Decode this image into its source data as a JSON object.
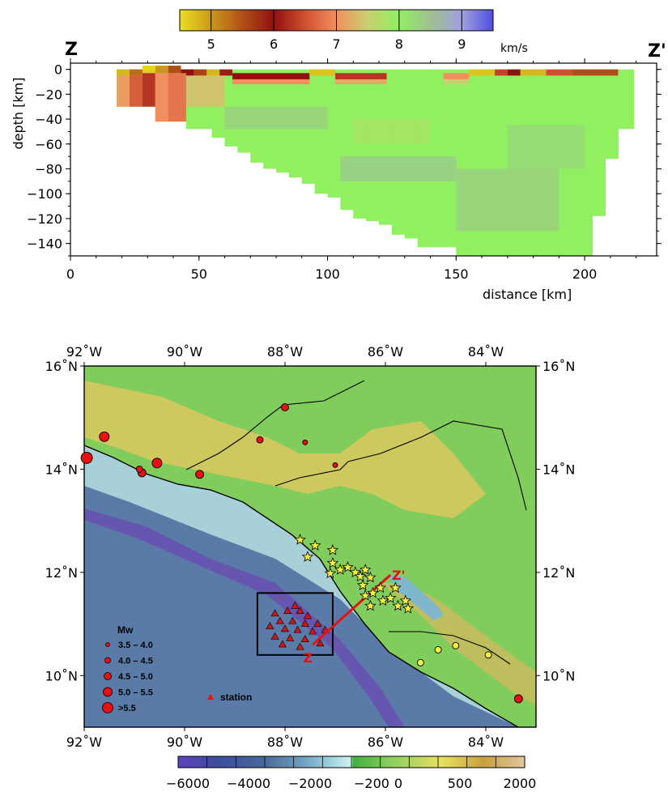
{
  "top_panel": {
    "left_label": "Z",
    "right_label": "Z'",
    "velocity_unit": "km/s",
    "velocity_colorbar": {
      "ticks": [
        "5",
        "6",
        "7",
        "8",
        "9"
      ],
      "range": [
        4.5,
        9.5
      ],
      "stops": [
        {
          "v": 4.5,
          "color": "#e8e020"
        },
        {
          "v": 5.5,
          "color": "#b05018"
        },
        {
          "v": 6.0,
          "color": "#901010"
        },
        {
          "v": 6.5,
          "color": "#d05030"
        },
        {
          "v": 7.0,
          "color": "#f09060"
        },
        {
          "v": 7.5,
          "color": "#c8d070"
        },
        {
          "v": 8.0,
          "color": "#90f060"
        },
        {
          "v": 8.5,
          "color": "#a0c090"
        },
        {
          "v": 9.0,
          "color": "#a0a0e0"
        },
        {
          "v": 9.5,
          "color": "#5050e0"
        }
      ]
    },
    "x_axis_label": "distance [km]",
    "y_axis_label": "depth [km]",
    "x_ticks": [
      "0",
      "50",
      "100",
      "150",
      "200"
    ],
    "y_ticks": [
      "0",
      "−20",
      "−40",
      "−60",
      "−80",
      "−100",
      "−120",
      "−140"
    ]
  },
  "map_panel": {
    "lon_ticks": [
      "92˚W",
      "90˚W",
      "88˚W",
      "86˚W",
      "84˚W"
    ],
    "lat_ticks": [
      "16˚N",
      "14˚N",
      "12˚N",
      "10˚N"
    ],
    "legend_title": "Mw",
    "legend_items": [
      "3.5 – 4.0",
      "4.0 – 4.5",
      "4.5 – 5.0",
      "5.0 – 5.5",
      ">5.5"
    ],
    "station_label": "station",
    "profile_start_label": "Z",
    "profile_end_label": "Z'",
    "elevation_ticks": [
      "−6000",
      "−4000",
      "−2000",
      "−200",
      "0",
      "500",
      "2000"
    ]
  },
  "chart_data": [
    {
      "type": "heatmap",
      "title": "",
      "xlabel": "distance [km]",
      "ylabel": "depth [km]",
      "xlim": [
        0,
        228
      ],
      "ylim": [
        -150,
        5
      ],
      "colorbar": {
        "label": "km/s",
        "range": [
          4.5,
          9.5
        ],
        "ticks": [
          5,
          6,
          7,
          8,
          9
        ]
      },
      "model_columns": [
        {
          "x0": 18,
          "x1": 23,
          "bottom": -30
        },
        {
          "x0": 23,
          "x1": 28,
          "bottom": -30
        },
        {
          "x0": 28,
          "x1": 33,
          "bottom": -30
        },
        {
          "x0": 33,
          "x1": 38,
          "bottom": -42
        },
        {
          "x0": 38,
          "x1": 45,
          "bottom": -42
        },
        {
          "x0": 45,
          "x1": 55,
          "bottom": -48
        },
        {
          "x0": 55,
          "x1": 60,
          "bottom": -55
        },
        {
          "x0": 60,
          "x1": 65,
          "bottom": -62
        },
        {
          "x0": 65,
          "x1": 70,
          "bottom": -67
        },
        {
          "x0": 70,
          "x1": 75,
          "bottom": -75
        },
        {
          "x0": 75,
          "x1": 80,
          "bottom": -80
        },
        {
          "x0": 80,
          "x1": 85,
          "bottom": -83
        },
        {
          "x0": 85,
          "x1": 90,
          "bottom": -87
        },
        {
          "x0": 90,
          "x1": 95,
          "bottom": -92
        },
        {
          "x0": 95,
          "x1": 100,
          "bottom": -100
        },
        {
          "x0": 100,
          "x1": 105,
          "bottom": -103
        },
        {
          "x0": 105,
          "x1": 110,
          "bottom": -113
        },
        {
          "x0": 110,
          "x1": 115,
          "bottom": -120
        },
        {
          "x0": 115,
          "x1": 120,
          "bottom": -122
        },
        {
          "x0": 120,
          "x1": 125,
          "bottom": -125
        },
        {
          "x0": 125,
          "x1": 130,
          "bottom": -133
        },
        {
          "x0": 130,
          "x1": 135,
          "bottom": -136
        },
        {
          "x0": 135,
          "x1": 140,
          "bottom": -143
        },
        {
          "x0": 140,
          "x1": 150,
          "bottom": -143
        },
        {
          "x0": 150,
          "x1": 165,
          "bottom": -150
        },
        {
          "x0": 165,
          "x1": 175,
          "bottom": -150
        },
        {
          "x0": 175,
          "x1": 185,
          "bottom": -150
        },
        {
          "x0": 185,
          "x1": 195,
          "bottom": -150
        },
        {
          "x0": 195,
          "x1": 203,
          "bottom": -150
        },
        {
          "x0": 203,
          "x1": 208,
          "bottom": -118
        },
        {
          "x0": 208,
          "x1": 213,
          "bottom": -72
        },
        {
          "x0": 213,
          "x1": 219,
          "bottom": -48
        }
      ],
      "velocity_cells": [
        {
          "x0": 18,
          "x1": 23,
          "z0": 0,
          "z1": -5,
          "v": 4.8
        },
        {
          "x0": 23,
          "x1": 28,
          "z0": 0,
          "z1": -5,
          "v": 5.3
        },
        {
          "x0": 28,
          "x1": 33,
          "z0": 3,
          "z1": -3,
          "v": 4.6
        },
        {
          "x0": 33,
          "x1": 38,
          "z0": 3,
          "z1": -3,
          "v": 5.0
        },
        {
          "x0": 38,
          "x1": 43,
          "z0": 3,
          "z1": -3,
          "v": 5.5
        },
        {
          "x0": 43,
          "x1": 48,
          "z0": 0,
          "z1": -5,
          "v": 6.0
        },
        {
          "x0": 48,
          "x1": 53,
          "z0": 0,
          "z1": -5,
          "v": 5.6
        },
        {
          "x0": 53,
          "x1": 58,
          "z0": 0,
          "z1": -5,
          "v": 4.8
        },
        {
          "x0": 58,
          "x1": 63,
          "z0": 0,
          "z1": -5,
          "v": 6.1
        },
        {
          "x0": 63,
          "x1": 93,
          "z0": -3,
          "z1": -8,
          "v": 6.0
        },
        {
          "x0": 93,
          "x1": 103,
          "z0": 0,
          "z1": -5,
          "v": 4.7
        },
        {
          "x0": 103,
          "x1": 123,
          "z0": -3,
          "z1": -8,
          "v": 6.3
        },
        {
          "x0": 145,
          "x1": 155,
          "z0": -3,
          "z1": -8,
          "v": 7.0
        },
        {
          "x0": 155,
          "x1": 165,
          "z0": 0,
          "z1": -5,
          "v": 4.7
        },
        {
          "x0": 165,
          "x1": 170,
          "z0": 0,
          "z1": -5,
          "v": 6.4
        },
        {
          "x0": 170,
          "x1": 175,
          "z0": 0,
          "z1": -5,
          "v": 6.0
        },
        {
          "x0": 175,
          "x1": 185,
          "z0": 0,
          "z1": -5,
          "v": 4.8
        },
        {
          "x0": 185,
          "x1": 195,
          "z0": 0,
          "z1": -5,
          "v": 6.5
        },
        {
          "x0": 195,
          "x1": 213,
          "z0": 0,
          "z1": -5,
          "v": 5.5
        },
        {
          "x0": 18,
          "x1": 23,
          "z0": -5,
          "z1": -30,
          "v": 7.1
        },
        {
          "x0": 23,
          "x1": 28,
          "z0": -5,
          "z1": -30,
          "v": 6.6
        },
        {
          "x0": 28,
          "x1": 33,
          "z0": -3,
          "z1": -30,
          "v": 6.3
        },
        {
          "x0": 33,
          "x1": 38,
          "z0": -3,
          "z1": -42,
          "v": 7.0
        },
        {
          "x0": 38,
          "x1": 45,
          "z0": -3,
          "z1": -42,
          "v": 6.8
        },
        {
          "x0": 45,
          "x1": 60,
          "z0": -5,
          "z1": -30,
          "v": 7.4
        },
        {
          "x0": 63,
          "x1": 93,
          "z0": -8,
          "z1": -12,
          "v": 7.0
        },
        {
          "x0": 103,
          "x1": 123,
          "z0": -8,
          "z1": -12,
          "v": 7.2
        },
        {
          "x0": 145,
          "x1": 155,
          "z0": -8,
          "z1": -12,
          "v": 7.5
        },
        {
          "x0": 60,
          "x1": 100,
          "z0": -30,
          "z1": -48,
          "v": 8.5
        },
        {
          "x0": 110,
          "x1": 140,
          "z0": -40,
          "z1": -60,
          "v": 7.7
        },
        {
          "x0": 105,
          "x1": 150,
          "z0": -70,
          "z1": -90,
          "v": 8.6
        },
        {
          "x0": 150,
          "x1": 190,
          "z0": -80,
          "z1": -130,
          "v": 8.5
        },
        {
          "x0": 170,
          "x1": 200,
          "z0": -45,
          "z1": -80,
          "v": 8.4
        }
      ],
      "background_velocity": 8.0
    },
    {
      "type": "scatter",
      "title": "",
      "xlabel": "",
      "ylabel": "",
      "xlim": [
        -92,
        -83
      ],
      "ylim": [
        9,
        16
      ],
      "series": [
        {
          "name": "Mw",
          "points": [
            {
              "lon": -91.6,
              "lat": 14.63,
              "mw": ">5.5",
              "r": 6,
              "color": "#e81010"
            },
            {
              "lon": -91.95,
              "lat": 14.22,
              "mw": ">5.5",
              "r": 7,
              "color": "#e81010"
            },
            {
              "lon": -90.85,
              "lat": 13.93,
              "mw": "5.0 – 5.5",
              "r": 5,
              "color": "#e81010"
            },
            {
              "lon": -90.9,
              "lat": 14.0,
              "mw": "4.0 – 4.5",
              "r": 4,
              "color": "#e81010"
            },
            {
              "lon": -90.55,
              "lat": 14.12,
              "mw": "5.0 – 5.5",
              "r": 6,
              "color": "#e81010"
            },
            {
              "lon": -89.7,
              "lat": 13.9,
              "mw": "4.5 – 5.0",
              "r": 5,
              "color": "#e81010"
            },
            {
              "lon": -88.0,
              "lat": 15.2,
              "mw": "4.5 – 5.0",
              "r": 4.5,
              "color": "#e81010"
            },
            {
              "lon": -88.5,
              "lat": 14.57,
              "mw": "4.0 – 4.5",
              "r": 4,
              "color": "#e81010"
            },
            {
              "lon": -87.6,
              "lat": 14.52,
              "mw": "3.5 – 4.0",
              "r": 3,
              "color": "#e81010"
            },
            {
              "lon": -87.0,
              "lat": 14.08,
              "mw": "3.5 – 4.0",
              "r": 3,
              "color": "#e81010"
            },
            {
              "lon": -83.35,
              "lat": 9.55,
              "mw": "4.5 – 5.0",
              "r": 5,
              "color": "#e81010"
            },
            {
              "lon": -85.3,
              "lat": 10.25,
              "mw": "",
              "r": 4,
              "color": "#f8f040"
            },
            {
              "lon": -84.95,
              "lat": 10.5,
              "mw": "",
              "r": 4,
              "color": "#f8f040"
            },
            {
              "lon": -84.6,
              "lat": 10.58,
              "mw": "",
              "r": 4,
              "color": "#f8f040"
            },
            {
              "lon": -83.95,
              "lat": 10.4,
              "mw": "",
              "r": 4,
              "color": "#f8f040"
            }
          ]
        },
        {
          "name": "stars",
          "points": [
            {
              "lon": -87.7,
              "lat": 12.63
            },
            {
              "lon": -87.4,
              "lat": 12.52
            },
            {
              "lon": -87.55,
              "lat": 12.3
            },
            {
              "lon": -87.05,
              "lat": 12.43
            },
            {
              "lon": -87.05,
              "lat": 12.18
            },
            {
              "lon": -86.9,
              "lat": 12.05
            },
            {
              "lon": -87.1,
              "lat": 11.98
            },
            {
              "lon": -86.75,
              "lat": 12.1
            },
            {
              "lon": -86.6,
              "lat": 12.0
            },
            {
              "lon": -86.5,
              "lat": 11.92
            },
            {
              "lon": -86.4,
              "lat": 12.05
            },
            {
              "lon": -86.3,
              "lat": 11.9
            },
            {
              "lon": -86.45,
              "lat": 11.75
            },
            {
              "lon": -86.25,
              "lat": 11.6
            },
            {
              "lon": -86.1,
              "lat": 11.7
            },
            {
              "lon": -86.4,
              "lat": 11.55
            },
            {
              "lon": -86.3,
              "lat": 11.35
            },
            {
              "lon": -86.05,
              "lat": 11.45
            },
            {
              "lon": -85.9,
              "lat": 11.5
            },
            {
              "lon": -85.75,
              "lat": 11.35
            },
            {
              "lon": -85.6,
              "lat": 11.45
            },
            {
              "lon": -85.55,
              "lat": 11.3
            },
            {
              "lon": -85.8,
              "lat": 11.7
            }
          ]
        },
        {
          "name": "station",
          "points": [
            {
              "lon": -87.8,
              "lat": 11.35
            },
            {
              "lon": -87.95,
              "lat": 11.25
            },
            {
              "lon": -87.7,
              "lat": 11.25
            },
            {
              "lon": -88.2,
              "lat": 11.2
            },
            {
              "lon": -87.55,
              "lat": 11.15
            },
            {
              "lon": -88.1,
              "lat": 11.05
            },
            {
              "lon": -87.85,
              "lat": 11.05
            },
            {
              "lon": -87.6,
              "lat": 11.0
            },
            {
              "lon": -87.35,
              "lat": 11.0
            },
            {
              "lon": -88.3,
              "lat": 10.95
            },
            {
              "lon": -88.0,
              "lat": 10.9
            },
            {
              "lon": -87.75,
              "lat": 10.88
            },
            {
              "lon": -87.45,
              "lat": 10.85
            },
            {
              "lon": -87.2,
              "lat": 10.88
            },
            {
              "lon": -88.2,
              "lat": 10.75
            },
            {
              "lon": -87.9,
              "lat": 10.72
            },
            {
              "lon": -87.6,
              "lat": 10.7
            },
            {
              "lon": -87.3,
              "lat": 10.62
            },
            {
              "lon": -88.05,
              "lat": 10.6
            },
            {
              "lon": -87.7,
              "lat": 10.55
            }
          ]
        }
      ],
      "study_box": {
        "lon": [
          -88.55,
          -87.05
        ],
        "lat": [
          10.4,
          11.6
        ]
      },
      "profile_line": {
        "start": {
          "lon": -87.45,
          "lat": 10.6
        },
        "end": {
          "lon": -85.9,
          "lat": 11.95
        }
      },
      "elevation_colorbar": {
        "label": "",
        "ticks": [
          -6000,
          -4000,
          -2000,
          -200,
          0,
          500,
          2000
        ]
      }
    }
  ]
}
